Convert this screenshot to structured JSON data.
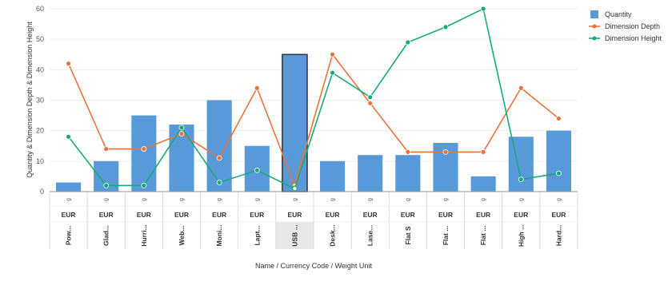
{
  "chart_data": {
    "type": "bar",
    "ylabel": "Quantity & Dimension Depth & Dimension Height",
    "xlabel": "Name / Currency Code / Weight Unit",
    "ylim": [
      0,
      60
    ],
    "yticks": [
      0,
      10,
      20,
      30,
      40,
      50,
      60
    ],
    "grid": true,
    "legend_position": "top-right",
    "categories": [
      {
        "name": "Pow...",
        "currency": "EUR",
        "unit": "g"
      },
      {
        "name": "Glad...",
        "currency": "EUR",
        "unit": "g"
      },
      {
        "name": "Hurri...",
        "currency": "EUR",
        "unit": "g"
      },
      {
        "name": "Web...",
        "currency": "EUR",
        "unit": "g"
      },
      {
        "name": "Moni...",
        "currency": "EUR",
        "unit": "g"
      },
      {
        "name": "Lapt...",
        "currency": "EUR",
        "unit": "g"
      },
      {
        "name": "USB ...",
        "currency": "EUR",
        "unit": "g"
      },
      {
        "name": "Desk...",
        "currency": "EUR",
        "unit": "g"
      },
      {
        "name": "Lase...",
        "currency": "EUR",
        "unit": "g"
      },
      {
        "name": "Flat S",
        "currency": "EUR",
        "unit": "g"
      },
      {
        "name": "Flat ...",
        "currency": "EUR",
        "unit": "g"
      },
      {
        "name": "Flat ...",
        "currency": "EUR",
        "unit": "g"
      },
      {
        "name": "High ...",
        "currency": "EUR",
        "unit": "g"
      },
      {
        "name": "Hard...",
        "currency": "EUR",
        "unit": "g"
      }
    ],
    "selected_index": 6,
    "series": [
      {
        "name": "Quantity",
        "kind": "bar",
        "color": "#5899DA",
        "values": [
          3,
          10,
          25,
          22,
          30,
          15,
          45,
          10,
          12,
          12,
          16,
          5,
          18,
          20
        ]
      },
      {
        "name": "Dimension Depth",
        "kind": "line",
        "color": "#E8743B",
        "values": [
          42,
          14,
          14,
          19,
          11,
          34,
          2,
          45,
          29,
          13,
          13,
          13,
          34,
          24
        ]
      },
      {
        "name": "Dimension Height",
        "kind": "line",
        "color": "#19A979",
        "values": [
          18,
          2,
          2,
          21,
          3,
          7,
          1,
          39,
          31,
          49,
          54,
          60,
          4,
          6
        ]
      }
    ]
  }
}
